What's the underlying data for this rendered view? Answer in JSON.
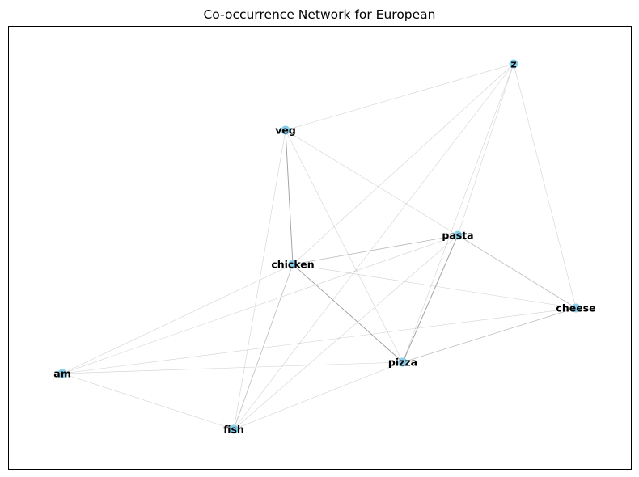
{
  "title": "Co-occurrence Network for European",
  "colors": {
    "node_fill": "#87ceeb",
    "edge_color": "#808080",
    "frame": "#000000",
    "background": "#ffffff"
  },
  "nodes": [
    {
      "id": "z",
      "label": "z"
    },
    {
      "id": "veg",
      "label": "veg"
    },
    {
      "id": "pasta",
      "label": "pasta"
    },
    {
      "id": "chicken",
      "label": "chicken"
    },
    {
      "id": "cheese",
      "label": "cheese"
    },
    {
      "id": "pizza",
      "label": "pizza"
    },
    {
      "id": "am",
      "label": "am"
    },
    {
      "id": "fish",
      "label": "fish"
    }
  ],
  "edges": [
    {
      "source": "z",
      "target": "veg",
      "weight": 1
    },
    {
      "source": "z",
      "target": "chicken",
      "weight": 1
    },
    {
      "source": "z",
      "target": "pasta",
      "weight": 1
    },
    {
      "source": "z",
      "target": "pizza",
      "weight": 1
    },
    {
      "source": "z",
      "target": "cheese",
      "weight": 1
    },
    {
      "source": "z",
      "target": "fish",
      "weight": 1
    },
    {
      "source": "veg",
      "target": "chicken",
      "weight": 3
    },
    {
      "source": "veg",
      "target": "pasta",
      "weight": 1
    },
    {
      "source": "veg",
      "target": "pizza",
      "weight": 1
    },
    {
      "source": "veg",
      "target": "fish",
      "weight": 1
    },
    {
      "source": "chicken",
      "target": "pasta",
      "weight": 2
    },
    {
      "source": "chicken",
      "target": "pizza",
      "weight": 3
    },
    {
      "source": "chicken",
      "target": "cheese",
      "weight": 1
    },
    {
      "source": "chicken",
      "target": "fish",
      "weight": 2
    },
    {
      "source": "chicken",
      "target": "am",
      "weight": 1
    },
    {
      "source": "pasta",
      "target": "pizza",
      "weight": 3
    },
    {
      "source": "pasta",
      "target": "cheese",
      "weight": 2
    },
    {
      "source": "pasta",
      "target": "am",
      "weight": 1
    },
    {
      "source": "pasta",
      "target": "fish",
      "weight": 1
    },
    {
      "source": "pizza",
      "target": "cheese",
      "weight": 2
    },
    {
      "source": "pizza",
      "target": "am",
      "weight": 1
    },
    {
      "source": "pizza",
      "target": "fish",
      "weight": 1
    },
    {
      "source": "cheese",
      "target": "am",
      "weight": 1
    },
    {
      "source": "am",
      "target": "fish",
      "weight": 1
    }
  ]
}
